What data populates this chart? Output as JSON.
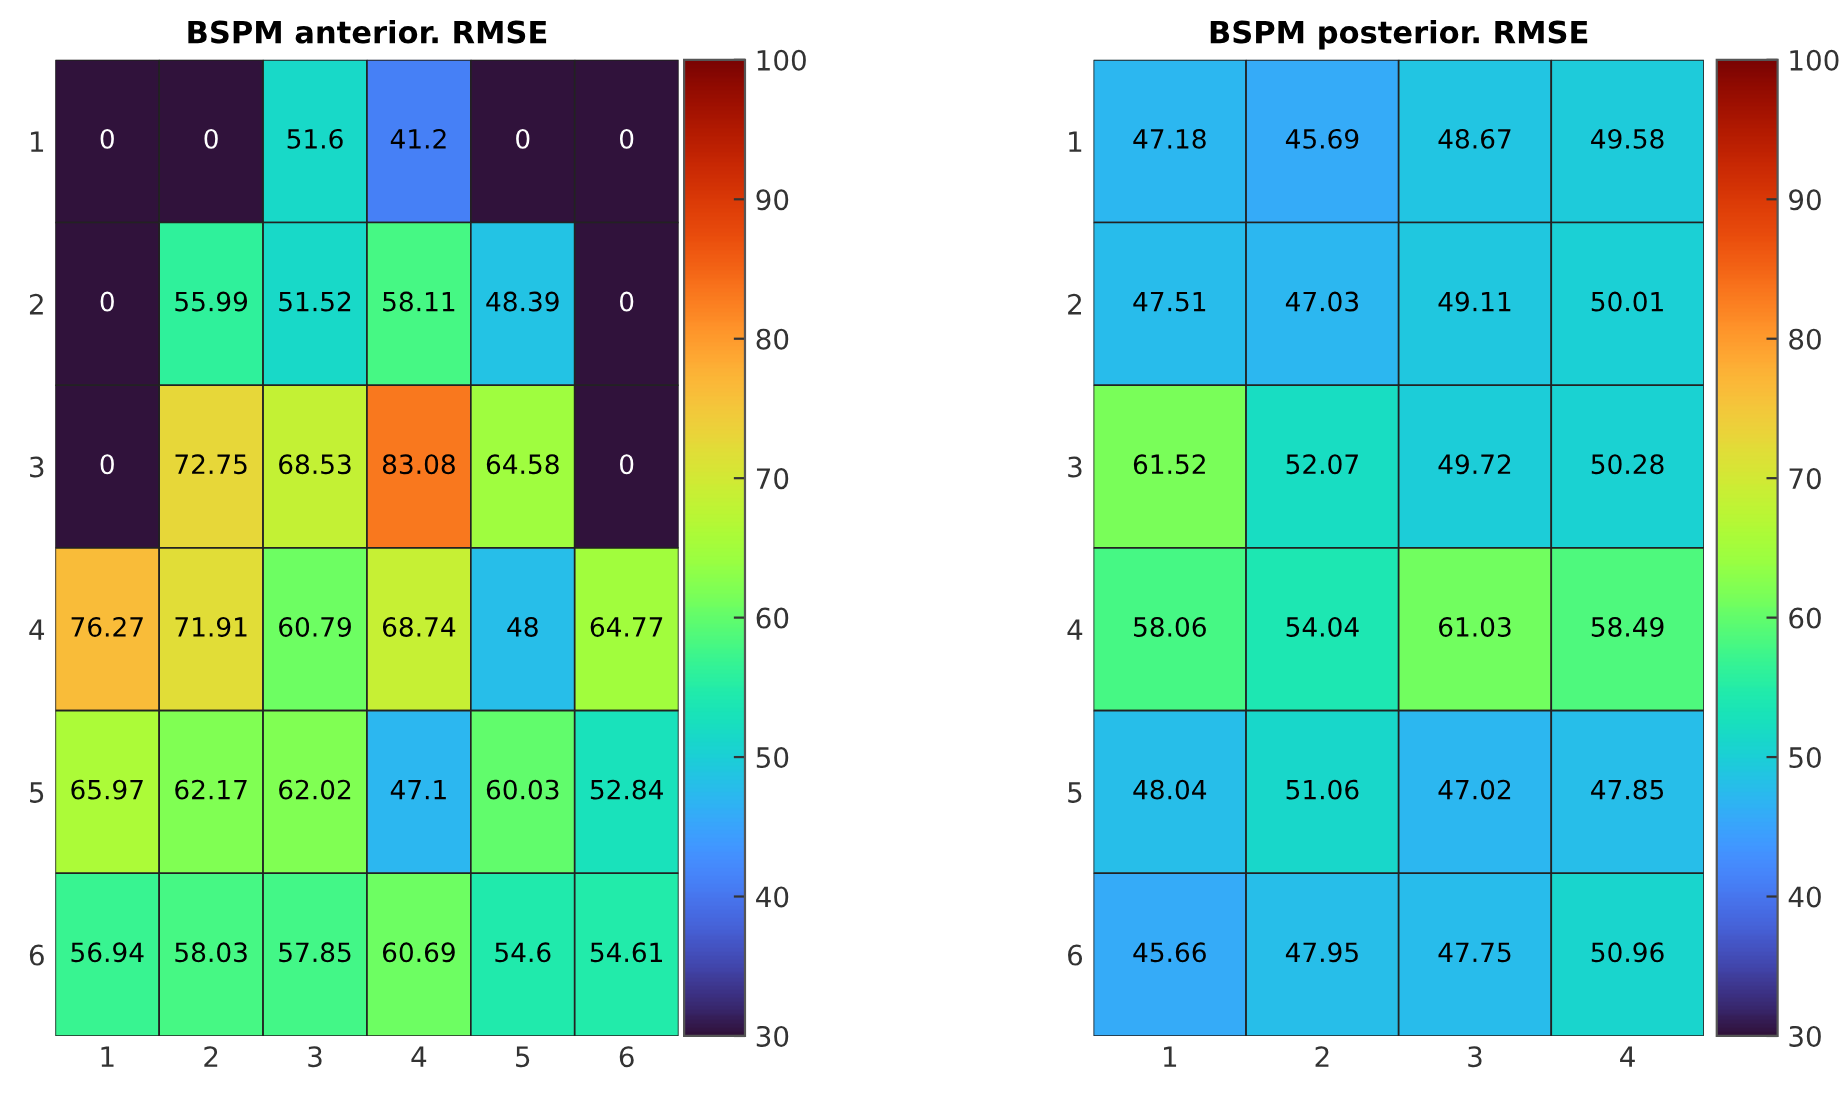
{
  "chart_data": [
    {
      "type": "heatmap",
      "title": "BSPM anterior. RMSE",
      "categories": [
        "1",
        "2",
        "3",
        "4",
        "5",
        "6"
      ],
      "y_categories": [
        "1",
        "2",
        "3",
        "4",
        "5",
        "6"
      ],
      "cells": [
        [
          0,
          0,
          51.6,
          41.2,
          0,
          0
        ],
        [
          0,
          55.99,
          51.52,
          58.11,
          48.39,
          0
        ],
        [
          0,
          72.75,
          68.53,
          83.08,
          64.58,
          0
        ],
        [
          76.27,
          71.91,
          60.79,
          68.74,
          48,
          64.77
        ],
        [
          65.97,
          62.17,
          62.02,
          47.1,
          60.03,
          52.84
        ],
        [
          56.94,
          58.03,
          57.85,
          60.69,
          54.6,
          54.61
        ]
      ],
      "data_labels": true,
      "clim": [
        30,
        100
      ],
      "cticks": [
        30,
        40,
        50,
        60,
        70,
        80,
        90,
        100
      ]
    },
    {
      "type": "heatmap",
      "title": "BSPM posterior. RMSE",
      "categories": [
        "1",
        "2",
        "3",
        "4"
      ],
      "y_categories": [
        "1",
        "2",
        "3",
        "4",
        "5",
        "6"
      ],
      "cells": [
        [
          47.18,
          45.69,
          48.67,
          49.58
        ],
        [
          47.51,
          47.03,
          49.11,
          50.01
        ],
        [
          61.52,
          52.07,
          49.72,
          50.28
        ],
        [
          58.06,
          54.04,
          61.03,
          58.49
        ],
        [
          48.04,
          51.06,
          47.02,
          47.85
        ],
        [
          45.66,
          47.95,
          47.75,
          50.96
        ]
      ],
      "data_labels": true,
      "clim": [
        30,
        100
      ],
      "cticks": [
        30,
        40,
        50,
        60,
        70,
        80,
        90,
        100
      ]
    }
  ]
}
